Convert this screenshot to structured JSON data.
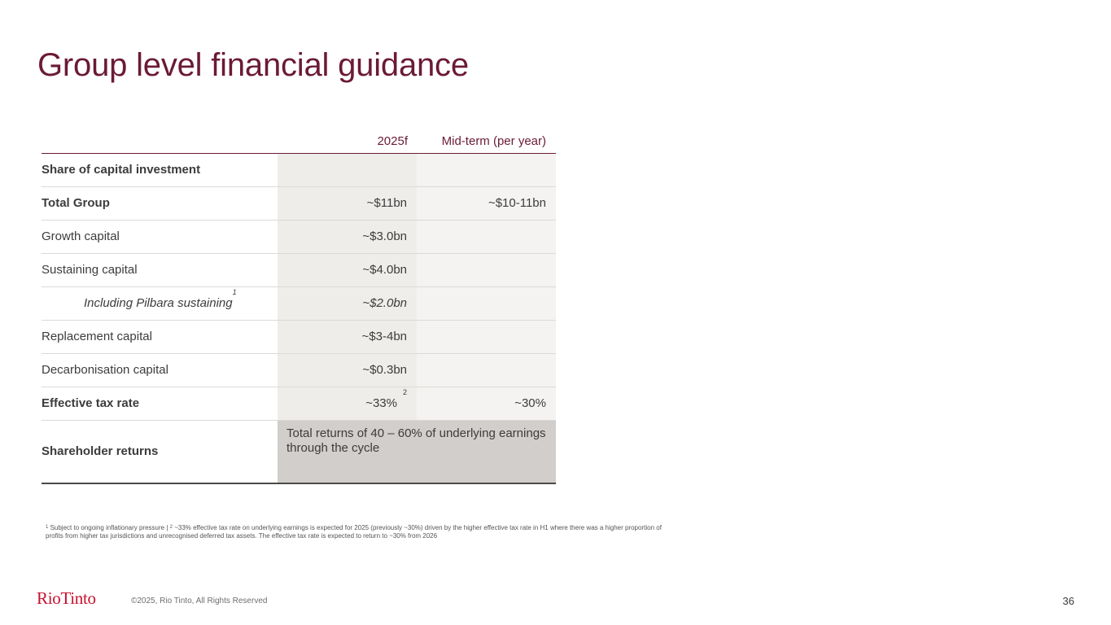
{
  "title": "Group level financial guidance",
  "table": {
    "col1_header": "2025f",
    "col2_header": "Mid-term (per year)",
    "rows": [
      {
        "label": "Share of capital investment",
        "v1": "",
        "v2": ""
      },
      {
        "label": "Total Group",
        "v1": "~$11bn",
        "v2": "~$10-11bn"
      },
      {
        "label": "Growth capital",
        "v1": "~$3.0bn",
        "v2": ""
      },
      {
        "label": "Sustaining capital",
        "v1": "~$4.0bn",
        "v2": ""
      },
      {
        "label": "Including Pilbara sustaining",
        "label_sup": "1",
        "v1": "~$2.0bn",
        "v2": ""
      },
      {
        "label": "Replacement capital",
        "v1": "~$3-4bn",
        "v2": ""
      },
      {
        "label": "Decarbonisation capital",
        "v1": "~$0.3bn",
        "v2": ""
      },
      {
        "label": "Effective tax rate",
        "v1": "~33%",
        "v1_sup": "2",
        "v2": "~30%"
      }
    ],
    "last_row": {
      "label": "Shareholder returns",
      "merged_value": "Total returns of 40 – 60% of underlying earnings through the cycle"
    }
  },
  "footnote": {
    "sup1": "1",
    "part1": " Subject to ongoing inflationary pressure | ",
    "sup2": "2",
    "part2": " ~33% effective tax rate on underlying earnings is expected for 2025 (previously ~30%) driven by the higher effective tax rate in H1 where there was a higher proportion of profits from higher tax jurisdictions and unrecognised deferred tax assets. The effective tax rate is expected to return to ~30% from 2026"
  },
  "footer": {
    "logo_text": "RioTinto",
    "copyright": "©2025, Rio Tinto, All Rights Reserved",
    "page_number": "36"
  },
  "colors": {
    "title": "#6b1a36",
    "logo": "#c8102e",
    "col1_bg": "#eeedea",
    "col2_bg": "#f4f3f1",
    "merged_bg": "#d1cecb"
  }
}
